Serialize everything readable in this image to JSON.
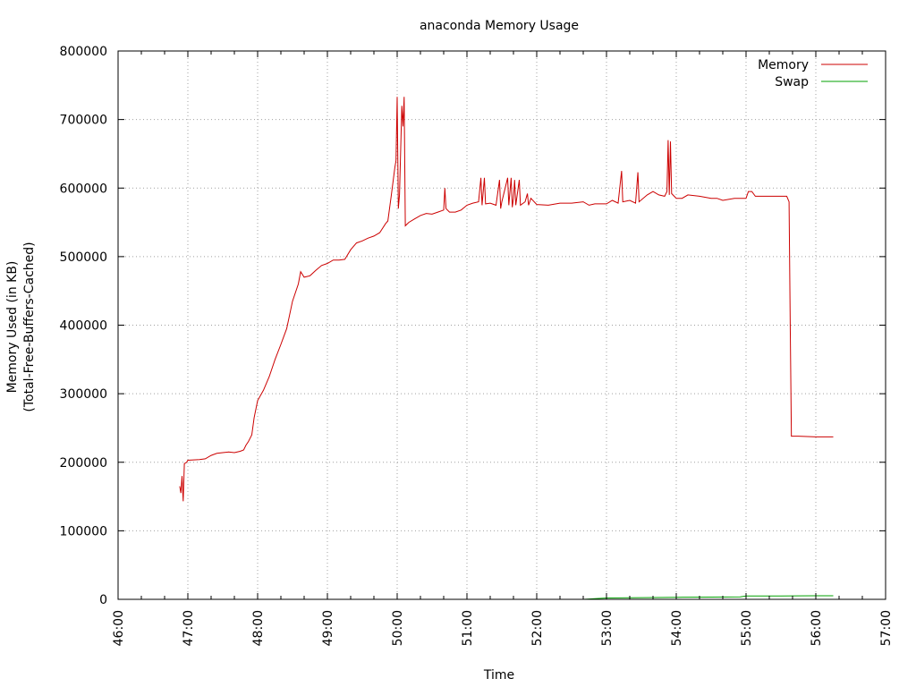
{
  "chart_data": {
    "type": "line",
    "title": "anaconda Memory Usage",
    "xlabel": "Time",
    "ylabel": [
      "Memory Used (in KB)",
      "(Total-Free-Buffers-Cached)"
    ],
    "x_ticks": [
      "46:00",
      "47:00",
      "48:00",
      "49:00",
      "50:00",
      "51:00",
      "52:00",
      "53:00",
      "54:00",
      "55:00",
      "56:00",
      "57:00"
    ],
    "y_ticks": [
      0,
      100000,
      200000,
      300000,
      400000,
      500000,
      600000,
      700000,
      800000
    ],
    "xlim": [
      "46:00",
      "57:00"
    ],
    "ylim": [
      0,
      800000
    ],
    "grid": true,
    "legend_position": "top-right",
    "series": [
      {
        "name": "Memory",
        "color": "#cc0000",
        "points": [
          [
            "46:53",
            165000
          ],
          [
            "46:54",
            155000
          ],
          [
            "46:55",
            180000
          ],
          [
            "46:56",
            143000
          ],
          [
            "46:57",
            198000
          ],
          [
            "46:59",
            200000
          ],
          [
            "47:00",
            203000
          ],
          [
            "47:10",
            204000
          ],
          [
            "47:15",
            205000
          ],
          [
            "47:20",
            210000
          ],
          [
            "47:25",
            213000
          ],
          [
            "47:30",
            214000
          ],
          [
            "47:35",
            215000
          ],
          [
            "47:40",
            214000
          ],
          [
            "47:45",
            216000
          ],
          [
            "47:48",
            218000
          ],
          [
            "47:50",
            225000
          ],
          [
            "47:52",
            230000
          ],
          [
            "47:55",
            240000
          ],
          [
            "47:57",
            265000
          ],
          [
            "48:00",
            290000
          ],
          [
            "48:05",
            305000
          ],
          [
            "48:10",
            325000
          ],
          [
            "48:15",
            350000
          ],
          [
            "48:20",
            372000
          ],
          [
            "48:25",
            395000
          ],
          [
            "48:30",
            435000
          ],
          [
            "48:35",
            460000
          ],
          [
            "48:37",
            478000
          ],
          [
            "48:40",
            470000
          ],
          [
            "48:45",
            472000
          ],
          [
            "48:50",
            480000
          ],
          [
            "48:55",
            487000
          ],
          [
            "49:00",
            490000
          ],
          [
            "49:05",
            495000
          ],
          [
            "49:10",
            495000
          ],
          [
            "49:15",
            496000
          ],
          [
            "49:20",
            510000
          ],
          [
            "49:25",
            520000
          ],
          [
            "49:30",
            523000
          ],
          [
            "49:35",
            527000
          ],
          [
            "49:40",
            530000
          ],
          [
            "49:45",
            535000
          ],
          [
            "49:50",
            548000
          ],
          [
            "49:52",
            552000
          ],
          [
            "49:55",
            590000
          ],
          [
            "49:58",
            630000
          ],
          [
            "49:59",
            640000
          ],
          [
            "50:00",
            733000
          ],
          [
            "50:01",
            570000
          ],
          [
            "50:02",
            590000
          ],
          [
            "50:04",
            720000
          ],
          [
            "50:05",
            690000
          ],
          [
            "50:06",
            733000
          ],
          [
            "50:07",
            545000
          ],
          [
            "50:10",
            550000
          ],
          [
            "50:15",
            555000
          ],
          [
            "50:20",
            560000
          ],
          [
            "50:25",
            563000
          ],
          [
            "50:30",
            562000
          ],
          [
            "50:35",
            565000
          ],
          [
            "50:40",
            568000
          ],
          [
            "50:41",
            600000
          ],
          [
            "50:42",
            570000
          ],
          [
            "50:45",
            565000
          ],
          [
            "50:50",
            565000
          ],
          [
            "50:55",
            568000
          ],
          [
            "51:00",
            575000
          ],
          [
            "51:05",
            578000
          ],
          [
            "51:10",
            580000
          ],
          [
            "51:12",
            615000
          ],
          [
            "51:13",
            575000
          ],
          [
            "51:15",
            615000
          ],
          [
            "51:16",
            577000
          ],
          [
            "51:20",
            578000
          ],
          [
            "51:25",
            575000
          ],
          [
            "51:28",
            612000
          ],
          [
            "51:29",
            570000
          ],
          [
            "51:30",
            580000
          ],
          [
            "51:35",
            615000
          ],
          [
            "51:36",
            575000
          ],
          [
            "51:38",
            615000
          ],
          [
            "51:39",
            572000
          ],
          [
            "51:40",
            585000
          ],
          [
            "51:41",
            612000
          ],
          [
            "51:42",
            575000
          ],
          [
            "51:45",
            612000
          ],
          [
            "51:46",
            575000
          ],
          [
            "51:50",
            580000
          ],
          [
            "51:52",
            592000
          ],
          [
            "51:53",
            575000
          ],
          [
            "51:55",
            585000
          ],
          [
            "52:00",
            576000
          ],
          [
            "52:10",
            575000
          ],
          [
            "52:20",
            578000
          ],
          [
            "52:30",
            578000
          ],
          [
            "52:40",
            580000
          ],
          [
            "52:45",
            575000
          ],
          [
            "52:50",
            577000
          ],
          [
            "53:00",
            577000
          ],
          [
            "53:05",
            582000
          ],
          [
            "53:10",
            578000
          ],
          [
            "53:13",
            625000
          ],
          [
            "53:14",
            580000
          ],
          [
            "53:20",
            582000
          ],
          [
            "53:25",
            578000
          ],
          [
            "53:27",
            623000
          ],
          [
            "53:28",
            580000
          ],
          [
            "53:35",
            590000
          ],
          [
            "53:40",
            595000
          ],
          [
            "53:45",
            590000
          ],
          [
            "53:50",
            588000
          ],
          [
            "53:52",
            595000
          ],
          [
            "53:53",
            670000
          ],
          [
            "53:54",
            590000
          ],
          [
            "53:55",
            668000
          ],
          [
            "53:56",
            592000
          ],
          [
            "54:00",
            585000
          ],
          [
            "54:05",
            585000
          ],
          [
            "54:10",
            590000
          ],
          [
            "54:20",
            588000
          ],
          [
            "54:30",
            585000
          ],
          [
            "54:35",
            585000
          ],
          [
            "54:40",
            582000
          ],
          [
            "54:50",
            585000
          ],
          [
            "55:00",
            585000
          ],
          [
            "55:02",
            595000
          ],
          [
            "55:05",
            595000
          ],
          [
            "55:08",
            588000
          ],
          [
            "55:20",
            588000
          ],
          [
            "55:35",
            588000
          ],
          [
            "55:37",
            580000
          ],
          [
            "55:38",
            400000
          ],
          [
            "55:39",
            238000
          ],
          [
            "55:45",
            238000
          ],
          [
            "56:00",
            237000
          ],
          [
            "56:10",
            237000
          ],
          [
            "56:15",
            237000
          ]
        ]
      },
      {
        "name": "Swap",
        "color": "#00a000",
        "points": [
          [
            "52:40",
            0
          ],
          [
            "53:00",
            2000
          ],
          [
            "53:30",
            2500
          ],
          [
            "54:00",
            3000
          ],
          [
            "54:30",
            3200
          ],
          [
            "54:55",
            3500
          ],
          [
            "55:00",
            5000
          ],
          [
            "55:30",
            5000
          ],
          [
            "56:00",
            5200
          ],
          [
            "56:15",
            5200
          ]
        ]
      }
    ]
  }
}
